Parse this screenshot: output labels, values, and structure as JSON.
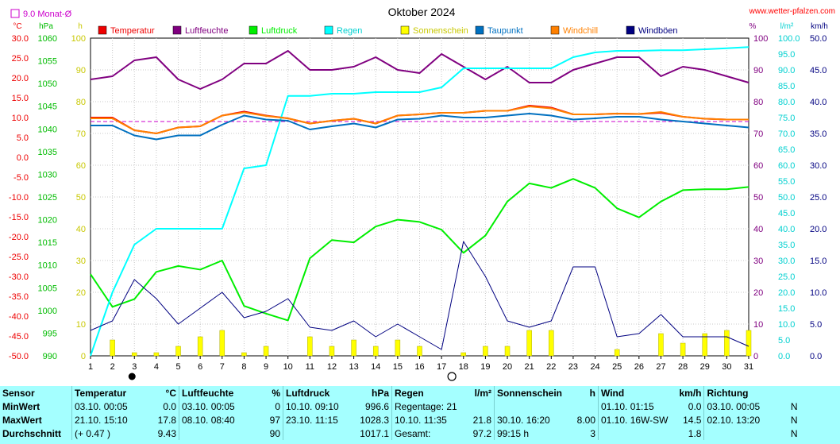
{
  "chart_data": {
    "type": "line",
    "title": "Oktober 2024",
    "source": "www.wetter-pfalzen.com",
    "avg_label": "9.0 Monat-Ø",
    "avg_temperature": 9.0,
    "x": [
      1,
      2,
      3,
      4,
      5,
      6,
      7,
      8,
      9,
      10,
      11,
      12,
      13,
      14,
      15,
      16,
      17,
      18,
      19,
      20,
      21,
      22,
      23,
      24,
      25,
      26,
      27,
      28,
      29,
      30,
      31
    ],
    "axes": {
      "temperature": {
        "unit": "°C",
        "range": [
          -50,
          30
        ],
        "ticks": [
          "30.0",
          "25.0",
          "20.0",
          "15.0",
          "10.0",
          "5.0",
          "0.0",
          "-5.0",
          "-10.0",
          "-15.0",
          "-20.0",
          "-25.0",
          "-30.0",
          "-35.0",
          "-40.0",
          "-45.0",
          "-50.0"
        ]
      },
      "pressure": {
        "unit": "hPa",
        "range": [
          990,
          1060
        ],
        "ticks": [
          "1060",
          "1055",
          "1050",
          "1045",
          "1040",
          "1035",
          "1030",
          "1025",
          "1020",
          "1015",
          "1010",
          "1005",
          "1000",
          "995",
          "990"
        ]
      },
      "sunshine": {
        "unit": "h",
        "range": [
          0,
          100
        ],
        "ticks": [
          "100",
          "90",
          "80",
          "70",
          "60",
          "50",
          "40",
          "30",
          "20",
          "10",
          "0"
        ]
      },
      "humidity": {
        "unit": "%",
        "range": [
          0,
          100
        ],
        "ticks": [
          "100",
          "90",
          "80",
          "70",
          "60",
          "50",
          "40",
          "30",
          "20",
          "10",
          "0"
        ]
      },
      "rain": {
        "unit": "l/m²",
        "range": [
          0,
          100
        ],
        "ticks": [
          "100.0",
          "95.0",
          "90.0",
          "85.0",
          "80.0",
          "75.0",
          "70.0",
          "65.0",
          "60.0",
          "55.0",
          "50.0",
          "45.0",
          "40.0",
          "35.0",
          "30.0",
          "25.0",
          "20.0",
          "15.0",
          "10.0",
          "5.0",
          "0.0"
        ]
      },
      "wind": {
        "unit": "km/h",
        "range": [
          0,
          50
        ],
        "ticks": [
          "50.0",
          "45.0",
          "40.0",
          "35.0",
          "30.0",
          "25.0",
          "20.0",
          "15.0",
          "10.0",
          "5.0",
          "0.0"
        ]
      }
    },
    "series": [
      {
        "name": "Temperatur",
        "color": "#ee0000",
        "axis": "temperature",
        "values": [
          10.0,
          10.0,
          6.8,
          6.0,
          7.5,
          7.8,
          10.5,
          11.5,
          10.5,
          9.8,
          8.5,
          9.2,
          9.7,
          8.5,
          10.5,
          10.8,
          11.2,
          11.2,
          11.7,
          11.7,
          13.0,
          12.5,
          10.8,
          10.8,
          11.0,
          10.9,
          11.2,
          10.2,
          9.7,
          9.5,
          9.5
        ]
      },
      {
        "name": "Luftfeuchte",
        "color": "#800080",
        "axis": "humidity",
        "values": [
          87,
          88,
          93,
          94,
          87,
          84,
          87,
          92,
          92,
          96,
          90,
          90,
          91,
          94,
          90,
          89,
          95,
          91,
          87,
          91,
          86,
          86,
          90,
          92,
          94,
          94,
          88,
          91,
          90,
          88,
          86
        ]
      },
      {
        "name": "Luftdruck",
        "color": "#00ee00",
        "axis": "pressure",
        "values": [
          1008.0,
          1000.8,
          1002.5,
          1008.5,
          1009.8,
          1009.0,
          1011.0,
          1001.0,
          999.3,
          997.8,
          1011.5,
          1015.5,
          1015.0,
          1018.5,
          1020.0,
          1019.5,
          1017.8,
          1012.7,
          1016.5,
          1024.0,
          1028.0,
          1027.0,
          1029.0,
          1027.0,
          1022.5,
          1020.5,
          1024.0,
          1026.5,
          1026.7,
          1026.7,
          1027.2
        ]
      },
      {
        "name": "Regen",
        "color": "#00ffff",
        "axis": "rain",
        "values": [
          0.0,
          20.0,
          35.0,
          40.0,
          40.0,
          40.0,
          40.0,
          59.0,
          60.0,
          81.8,
          81.8,
          82.5,
          82.5,
          83.0,
          83.0,
          83.0,
          84.5,
          90.5,
          90.5,
          90.5,
          90.5,
          90.5,
          94.0,
          95.5,
          96.0,
          96.0,
          96.2,
          96.2,
          96.5,
          96.8,
          97.2
        ]
      },
      {
        "name": "Sonnenschein",
        "color": "#ffff00",
        "axis": "sunshine",
        "type": "bar",
        "values": [
          0,
          5,
          1,
          1,
          3,
          6,
          8,
          1,
          3,
          0,
          6,
          3,
          5,
          3,
          5,
          3,
          0,
          1,
          3,
          3,
          8,
          8,
          0,
          0,
          2,
          0,
          7,
          4,
          7,
          8,
          8
        ]
      },
      {
        "name": "Taupunkt",
        "color": "#0070c0",
        "axis": "temperature",
        "values": [
          8.0,
          8.0,
          5.5,
          4.5,
          5.5,
          5.5,
          8.2,
          10.5,
          9.5,
          9.2,
          7.0,
          7.8,
          8.5,
          7.5,
          9.5,
          9.7,
          10.5,
          10.0,
          10.0,
          10.5,
          11.0,
          10.5,
          9.5,
          9.8,
          10.2,
          10.2,
          9.5,
          9.0,
          8.5,
          8.0,
          7.5
        ]
      },
      {
        "name": "Windchill",
        "color": "#ff8000",
        "axis": "temperature",
        "values": [
          9.8,
          9.8,
          6.8,
          6.0,
          7.5,
          7.8,
          10.5,
          11.3,
          10.4,
          9.8,
          8.5,
          9.2,
          9.7,
          8.5,
          10.5,
          10.8,
          11.2,
          11.2,
          11.7,
          11.7,
          12.8,
          12.3,
          10.8,
          10.8,
          11.0,
          10.9,
          11.4,
          10.2,
          9.7,
          9.5,
          9.5
        ]
      },
      {
        "name": "Windböen",
        "color": "#000080",
        "axis": "wind",
        "values": [
          4.0,
          5.5,
          12.0,
          9.0,
          5.0,
          7.5,
          10.0,
          6.0,
          7.0,
          9.0,
          4.5,
          4.0,
          5.5,
          3.0,
          5.0,
          3.0,
          1.0,
          18.0,
          12.5,
          5.5,
          4.5,
          5.5,
          14.0,
          14.0,
          3.0,
          3.5,
          6.5,
          3.0,
          3.0,
          3.0,
          1.5
        ]
      }
    ],
    "markers": [
      {
        "day": 3,
        "symbol": "new-moon"
      },
      {
        "day": 17,
        "symbol": "full-moon"
      }
    ]
  },
  "stats": {
    "header": [
      "Sensor",
      "Temperatur",
      "°C",
      "Luftfeuchte",
      "%",
      "Luftdruck",
      "hPa",
      "Regen",
      "l/m²",
      "Sonnenschein",
      "h",
      "Wind",
      "km/h",
      "Richtung",
      ""
    ],
    "rows": [
      [
        "MinWert",
        "03.10.  00:05",
        "0.0",
        "03.10.  00:05",
        "0",
        "10.10.  09:10",
        "996.6",
        "Regentage: 21",
        "",
        "",
        "",
        "01.10.  01:15",
        "0.0",
        "03.10.  00:05",
        "N"
      ],
      [
        "MaxWert",
        "21.10.  15:10",
        "17.8",
        "08.10.  08:40",
        "97",
        "23.10.  11:15",
        "1028.3",
        "10.10.  11:35",
        "21.8",
        "30.10.  16:20",
        "8.00",
        "01.10.  16W-SW",
        "14.5",
        "02.10.  13:20",
        "N"
      ],
      [
        "Durchschnitt",
        "(+ 0.47 )",
        "9.43",
        "",
        "90",
        "",
        "1017.1",
        "Gesamt:",
        "97.2",
        "99:15 h",
        "3",
        "",
        "1.8",
        "",
        "N"
      ]
    ]
  }
}
